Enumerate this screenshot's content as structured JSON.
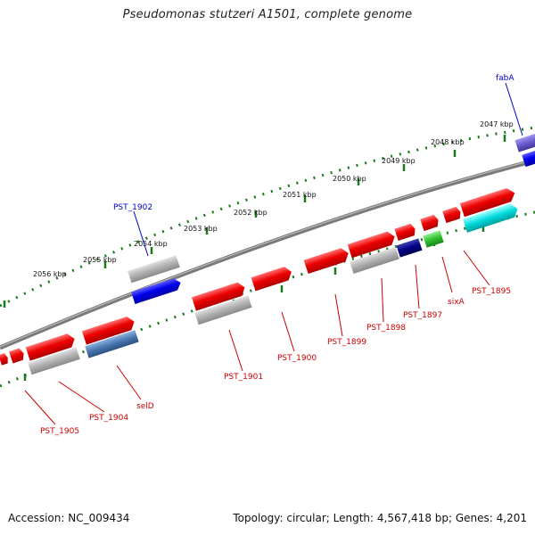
{
  "title": "Pseudomonas stutzeri A1501, complete genome",
  "footer": {
    "accession": "Accession: NC_009434",
    "summary": "Topology: circular; Length: 4,567,418 bp; Genes: 4,201"
  },
  "ticks": [
    "2047 kbp",
    "2048 kbp",
    "2049 kbp",
    "2050 kbp",
    "2051 kbp",
    "2052 kbp",
    "2053 kbp",
    "2054 kbp",
    "2055 kbp",
    "2056 kbp"
  ],
  "labels": {
    "fabA": "fabA",
    "pst1902": "PST_1902",
    "pst1895": "PST_1895",
    "sixA": "sixA",
    "pst1897": "PST_1897",
    "pst1898": "PST_1898",
    "pst1899": "PST_1899",
    "pst1900": "PST_1900",
    "pst1901": "PST_1901",
    "selD": "selD",
    "pst1904": "PST_1904",
    "pst1905": "PST_1905"
  },
  "colors": {
    "red": "#e00000",
    "blue": "#0000ee",
    "gray": "#a6a6a6",
    "steelblue": "#4472a8",
    "navy": "#000080",
    "green": "#2cc02c",
    "cyan": "#00d8d8",
    "purple": "#6a5acd",
    "label_red": "#cc0000",
    "label_blue": "#0000cc",
    "tick_green": "#1b7a1b",
    "backbone": "#7a7a7a"
  }
}
